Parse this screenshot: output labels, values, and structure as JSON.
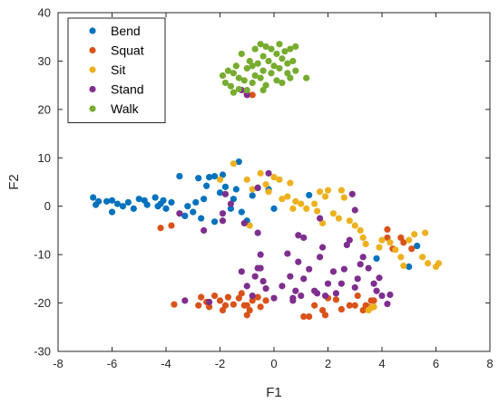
{
  "chart_data": {
    "type": "scatter",
    "title": "",
    "xlabel": "F1",
    "ylabel": "F2",
    "xlim": [
      -8,
      8
    ],
    "ylim": [
      -30,
      40
    ],
    "xticks": [
      -8,
      -6,
      -4,
      -2,
      0,
      2,
      4,
      6,
      8
    ],
    "yticks": [
      -30,
      -20,
      -10,
      0,
      10,
      20,
      30,
      40
    ],
    "grid": false,
    "legend_position": "top-left",
    "series": [
      {
        "name": "Bend",
        "color": "#0072BD",
        "points": [
          [
            -6.7,
            1.8
          ],
          [
            -6.6,
            0.3
          ],
          [
            -6.5,
            1.0
          ],
          [
            -6.2,
            1.0
          ],
          [
            -6.0,
            1.2
          ],
          [
            -6.0,
            -1.2
          ],
          [
            -5.8,
            0.5
          ],
          [
            -5.6,
            0.0
          ],
          [
            -5.4,
            0.8
          ],
          [
            -5.2,
            -0.5
          ],
          [
            -5.0,
            1.5
          ],
          [
            -4.8,
            1.2
          ],
          [
            -4.7,
            0.3
          ],
          [
            -4.4,
            1.8
          ],
          [
            -4.3,
            0.0
          ],
          [
            -4.2,
            0.5
          ],
          [
            -4.1,
            1.2
          ],
          [
            -4.0,
            -0.5
          ],
          [
            -3.8,
            0.8
          ],
          [
            -3.5,
            6.2
          ],
          [
            -3.3,
            -2.0
          ],
          [
            -3.2,
            0.0
          ],
          [
            -3.0,
            -1.2
          ],
          [
            -2.9,
            0.8
          ],
          [
            -2.8,
            5.8
          ],
          [
            -2.7,
            -2.5
          ],
          [
            -2.6,
            1.5
          ],
          [
            -2.5,
            4.2
          ],
          [
            -2.4,
            6.0
          ],
          [
            -2.2,
            -3.2
          ],
          [
            -2.2,
            6.2
          ],
          [
            -2.0,
            2.8
          ],
          [
            -1.9,
            6.5
          ],
          [
            -1.8,
            4.0
          ],
          [
            -1.6,
            -0.5
          ],
          [
            -1.5,
            1.5
          ],
          [
            -1.4,
            3.5
          ],
          [
            -1.3,
            9.2
          ],
          [
            -1.2,
            -1.2
          ],
          [
            -1.0,
            -3.0
          ],
          [
            -0.8,
            2.2
          ],
          [
            -0.6,
            3.8
          ],
          [
            0.0,
            -0.5
          ],
          [
            -0.2,
            3.5
          ],
          [
            1.3,
            2.3
          ],
          [
            3.8,
            -10.8
          ],
          [
            5.0,
            -12.5
          ],
          [
            5.3,
            -8.2
          ]
        ]
      },
      {
        "name": "Squat",
        "color": "#D95319",
        "points": [
          [
            -4.2,
            -4.5
          ],
          [
            -3.8,
            -4.0
          ],
          [
            -3.7,
            -20.3
          ],
          [
            -2.8,
            -20.5
          ],
          [
            -2.7,
            -18.8
          ],
          [
            -2.5,
            -19.8
          ],
          [
            -2.4,
            -20.8
          ],
          [
            -2.2,
            -18.5
          ],
          [
            -2.0,
            -19.5
          ],
          [
            -1.9,
            -21.5
          ],
          [
            -1.8,
            -20.5
          ],
          [
            -1.7,
            -18.8
          ],
          [
            -1.5,
            -20.3
          ],
          [
            -1.3,
            -19.0
          ],
          [
            -1.2,
            -18.0
          ],
          [
            -1.1,
            -20.5
          ],
          [
            -1.0,
            -22.5
          ],
          [
            -1.0,
            -20.5
          ],
          [
            -0.9,
            -21.5
          ],
          [
            -0.8,
            -19.5
          ],
          [
            -0.6,
            -18.8
          ],
          [
            -0.5,
            -20.8
          ],
          [
            -0.3,
            -19.5
          ],
          [
            -1.0,
            23.2
          ],
          [
            -0.8,
            23.0
          ],
          [
            1.1,
            -22.8
          ],
          [
            1.3,
            -22.8
          ],
          [
            1.5,
            -20.5
          ],
          [
            1.8,
            -21.5
          ],
          [
            1.9,
            -22.5
          ],
          [
            2.0,
            -19.0
          ],
          [
            2.3,
            -19.3
          ],
          [
            2.5,
            -21.3
          ],
          [
            2.8,
            -20.5
          ],
          [
            3.0,
            -20.5
          ],
          [
            3.1,
            -18.5
          ],
          [
            3.3,
            -21.5
          ],
          [
            3.4,
            -20.5
          ],
          [
            3.5,
            -20.8
          ],
          [
            3.6,
            -19.5
          ],
          [
            3.7,
            -19.5
          ],
          [
            4.2,
            -4.8
          ],
          [
            4.2,
            -6.5
          ],
          [
            4.4,
            -8.8
          ],
          [
            4.7,
            -6.5
          ],
          [
            4.8,
            -7.5
          ],
          [
            5.1,
            -8.8
          ]
        ]
      },
      {
        "name": "Sit",
        "color": "#EDB120",
        "points": [
          [
            -2.0,
            5.5
          ],
          [
            -1.5,
            8.8
          ],
          [
            -1.0,
            5.5
          ],
          [
            -0.8,
            3.5
          ],
          [
            -0.5,
            6.8
          ],
          [
            -0.3,
            4.5
          ],
          [
            -0.2,
            3.0
          ],
          [
            0.0,
            6.0
          ],
          [
            0.2,
            5.5
          ],
          [
            0.3,
            1.5
          ],
          [
            0.5,
            2.0
          ],
          [
            0.6,
            4.8
          ],
          [
            0.8,
            1.0
          ],
          [
            1.0,
            0.5
          ],
          [
            1.2,
            -0.5
          ],
          [
            1.5,
            0.5
          ],
          [
            1.6,
            -1.0
          ],
          [
            1.7,
            3.0
          ],
          [
            1.8,
            -3.5
          ],
          [
            1.9,
            2.0
          ],
          [
            2.0,
            3.3
          ],
          [
            2.2,
            -1.5
          ],
          [
            2.4,
            -2.5
          ],
          [
            2.5,
            3.3
          ],
          [
            2.6,
            1.8
          ],
          [
            2.8,
            -3.0
          ],
          [
            3.0,
            -4.0
          ],
          [
            3.2,
            -5.0
          ],
          [
            3.3,
            -6.5
          ],
          [
            3.4,
            -7.8
          ],
          [
            3.5,
            -21.5
          ],
          [
            3.6,
            -21.0
          ],
          [
            3.7,
            -20.8
          ],
          [
            3.9,
            -8.5
          ],
          [
            4.0,
            -7.0
          ],
          [
            4.3,
            -7.5
          ],
          [
            4.5,
            -9.0
          ],
          [
            4.7,
            -10.5
          ],
          [
            4.8,
            -12.3
          ],
          [
            5.0,
            -7.0
          ],
          [
            5.2,
            -5.8
          ],
          [
            5.5,
            -10.5
          ],
          [
            5.6,
            -5.5
          ],
          [
            5.7,
            -11.8
          ],
          [
            6.0,
            -12.5
          ],
          [
            6.1,
            -11.8
          ],
          [
            0.7,
            -0.5
          ],
          [
            -0.9,
            -4.0
          ]
        ]
      },
      {
        "name": "Stand",
        "color": "#7E2F8E",
        "points": [
          [
            -3.3,
            -19.5
          ],
          [
            -2.4,
            -19.8
          ],
          [
            -1.8,
            2.5
          ],
          [
            -1.2,
            -13.5
          ],
          [
            -1.0,
            -16.5
          ],
          [
            -0.8,
            -18.5
          ],
          [
            -0.7,
            -14.5
          ],
          [
            -0.6,
            -12.8
          ],
          [
            -0.5,
            -10.0
          ],
          [
            -0.4,
            -15.5
          ],
          [
            -0.3,
            -17.0
          ],
          [
            -0.2,
            6.8
          ],
          [
            0.0,
            -19.0
          ],
          [
            0.3,
            -16.5
          ],
          [
            0.6,
            -14.5
          ],
          [
            0.7,
            -19.0
          ],
          [
            0.8,
            -17.5
          ],
          [
            0.9,
            -11.5
          ],
          [
            1.0,
            -18.5
          ],
          [
            1.1,
            -15.0
          ],
          [
            1.3,
            -13.0
          ],
          [
            1.5,
            -17.5
          ],
          [
            1.6,
            -18.0
          ],
          [
            1.7,
            -10.5
          ],
          [
            1.9,
            -18.5
          ],
          [
            2.0,
            -16.0
          ],
          [
            2.2,
            -13.5
          ],
          [
            2.3,
            -18.0
          ],
          [
            2.5,
            -16.0
          ],
          [
            2.6,
            -13.0
          ],
          [
            2.8,
            -7.0
          ],
          [
            3.0,
            -16.8
          ],
          [
            3.1,
            -15.0
          ],
          [
            3.2,
            -12.0
          ],
          [
            3.3,
            -10.5
          ],
          [
            3.5,
            -12.8
          ],
          [
            3.7,
            -16.0
          ],
          [
            3.8,
            -17.5
          ],
          [
            3.9,
            -14.8
          ],
          [
            4.0,
            -18.5
          ],
          [
            4.2,
            -20.2
          ],
          [
            4.3,
            -18.3
          ],
          [
            -2.6,
            -5.0
          ],
          [
            -1.6,
            0.5
          ],
          [
            -1.9,
            -1.5
          ],
          [
            -1.1,
            -3.5
          ],
          [
            -0.6,
            3.8
          ],
          [
            -0.6,
            -5.5
          ],
          [
            1.1,
            -6.5
          ],
          [
            0.5,
            -9.8
          ],
          [
            2.7,
            -8.0
          ],
          [
            1.8,
            -8.5
          ],
          [
            -3.5,
            -1.5
          ],
          [
            -1.9,
            -3.0
          ],
          [
            2.9,
            2.5
          ],
          [
            3.0,
            -0.8
          ],
          [
            1.7,
            -2.5
          ],
          [
            -1.0,
            23.0
          ],
          [
            -1.2,
            24.0
          ],
          [
            -0.5,
            -12.8
          ],
          [
            0.9,
            -6.0
          ],
          [
            0.7,
            -19.5
          ]
        ]
      },
      {
        "name": "Walk",
        "color": "#77AC30",
        "points": [
          [
            -1.9,
            27.0
          ],
          [
            -1.8,
            25.5
          ],
          [
            -1.7,
            28.0
          ],
          [
            -1.6,
            24.8
          ],
          [
            -1.5,
            27.5
          ],
          [
            -1.4,
            29.0
          ],
          [
            -1.3,
            26.5
          ],
          [
            -1.2,
            31.5
          ],
          [
            -1.1,
            26.0
          ],
          [
            -1.0,
            28.5
          ],
          [
            -1.0,
            24.0
          ],
          [
            -0.9,
            30.0
          ],
          [
            -0.8,
            25.5
          ],
          [
            -0.7,
            32.5
          ],
          [
            -0.7,
            27.0
          ],
          [
            -0.6,
            29.5
          ],
          [
            -0.5,
            33.5
          ],
          [
            -0.5,
            26.5
          ],
          [
            -0.4,
            31.0
          ],
          [
            -0.4,
            28.0
          ],
          [
            -0.3,
            25.0
          ],
          [
            -0.3,
            33.0
          ],
          [
            -0.2,
            30.0
          ],
          [
            -0.1,
            27.5
          ],
          [
            -0.1,
            32.5
          ],
          [
            0.0,
            29.0
          ],
          [
            0.1,
            26.0
          ],
          [
            0.1,
            31.5
          ],
          [
            0.2,
            33.5
          ],
          [
            0.2,
            28.5
          ],
          [
            0.3,
            25.5
          ],
          [
            0.3,
            30.5
          ],
          [
            0.4,
            32.0
          ],
          [
            0.5,
            27.5
          ],
          [
            0.5,
            29.5
          ],
          [
            0.6,
            26.5
          ],
          [
            0.6,
            32.5
          ],
          [
            0.7,
            30.0
          ],
          [
            0.8,
            33.0
          ],
          [
            0.8,
            28.0
          ],
          [
            -1.5,
            23.5
          ],
          [
            -1.3,
            24.2
          ],
          [
            1.2,
            26.5
          ],
          [
            -0.8,
            29.0
          ],
          [
            -0.4,
            24.0
          ]
        ]
      }
    ]
  }
}
